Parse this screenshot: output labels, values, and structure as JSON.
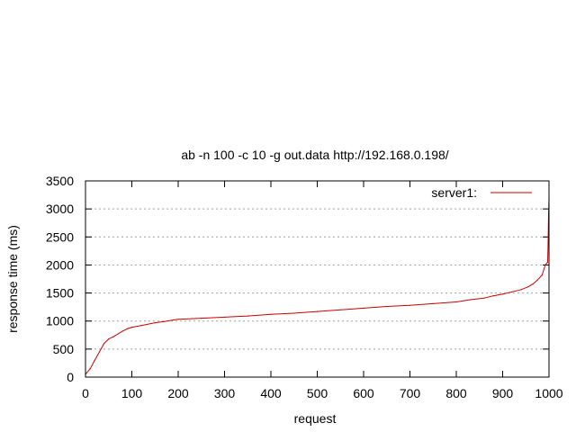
{
  "chart_data": {
    "type": "line",
    "title": "ab -n 100 -c 10 -g out.data http://192.168.0.198/",
    "xlabel": "request",
    "ylabel": "response time (ms)",
    "xlim": [
      0,
      1000
    ],
    "ylim": [
      0,
      3500
    ],
    "xticks": [
      "0",
      "100",
      "200",
      "300",
      "400",
      "500",
      "600",
      "700",
      "800",
      "900",
      "1000"
    ],
    "yticks": [
      "0",
      "500",
      "1000",
      "1500",
      "2000",
      "2500",
      "3000",
      "3500"
    ],
    "grid": "horizontal dotted",
    "legend_position": "top-right",
    "series": [
      {
        "name": "server1:",
        "color": "#cc0000",
        "x": [
          0,
          10,
          20,
          30,
          40,
          50,
          60,
          70,
          80,
          90,
          100,
          120,
          150,
          170,
          190,
          200,
          250,
          300,
          350,
          400,
          450,
          500,
          550,
          600,
          650,
          700,
          750,
          800,
          830,
          860,
          880,
          900,
          920,
          940,
          955,
          965,
          975,
          985,
          992,
          997,
          998,
          999,
          1000
        ],
        "y": [
          50,
          150,
          300,
          450,
          600,
          680,
          720,
          770,
          820,
          860,
          890,
          920,
          970,
          990,
          1020,
          1030,
          1050,
          1070,
          1090,
          1120,
          1140,
          1170,
          1200,
          1230,
          1260,
          1280,
          1310,
          1340,
          1380,
          1410,
          1450,
          1480,
          1520,
          1560,
          1610,
          1660,
          1730,
          1820,
          2000,
          2050,
          2400,
          2900,
          3200
        ]
      }
    ]
  }
}
